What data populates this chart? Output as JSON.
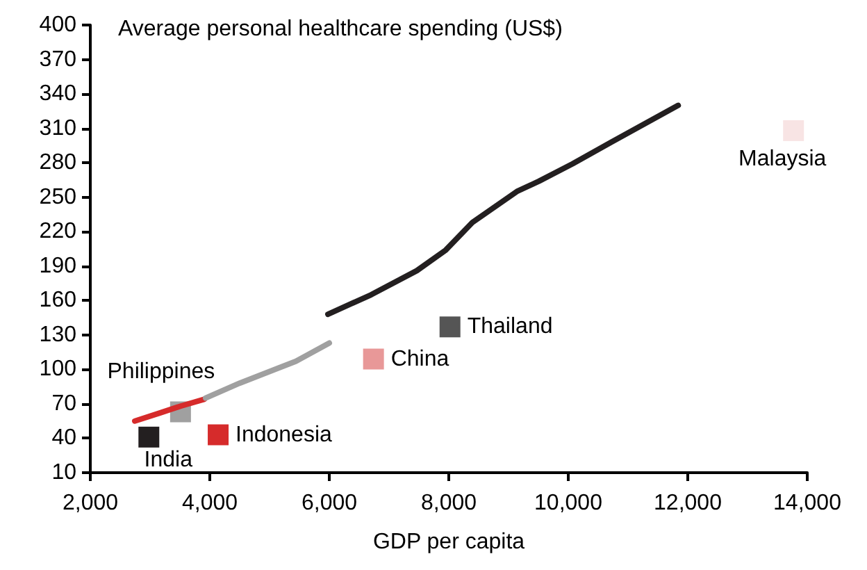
{
  "chart_data": {
    "type": "scatter",
    "title": "Average personal healthcare spending (US$)",
    "xlabel": "GDP per capita",
    "xlim": [
      2000,
      14000
    ],
    "xticks": [
      {
        "value": 2000,
        "label": "2,000"
      },
      {
        "value": 4000,
        "label": "4,000"
      },
      {
        "value": 6000,
        "label": "6,000"
      },
      {
        "value": 8000,
        "label": "8,000"
      },
      {
        "value": 10000,
        "label": "10,000"
      },
      {
        "value": 12000,
        "label": "12,000"
      },
      {
        "value": 14000,
        "label": "14,000"
      }
    ],
    "ylim": [
      10,
      400
    ],
    "yticks": [
      10,
      40,
      70,
      100,
      130,
      160,
      190,
      220,
      250,
      280,
      310,
      340,
      370,
      400
    ],
    "grid": false,
    "legend": false,
    "marker": "square",
    "series": [
      {
        "type": "line",
        "marker": "none",
        "color": "#d62b2b",
        "x": [
          2744,
          3163,
          3512,
          3907
        ],
        "values": [
          55,
          62,
          68,
          74
        ]
      },
      {
        "type": "line",
        "marker": "none",
        "color": "#a0a0a0",
        "x": [
          3930,
          4500,
          5140,
          5440,
          6000
        ],
        "values": [
          75,
          88,
          101,
          107,
          123
        ]
      },
      {
        "type": "line",
        "marker": "none",
        "color": "#231f20",
        "x": [
          5977,
          6700,
          7465,
          7950,
          8395,
          9140,
          9510,
          10070,
          10720,
          11840
        ],
        "values": [
          148,
          165,
          186,
          204,
          228,
          255,
          264,
          279,
          298,
          330
        ]
      },
      {
        "name": "India",
        "color": "#231f20",
        "x": [
          2980
        ],
        "values": [
          41
        ]
      },
      {
        "name": "Philippines",
        "color": "#a0a0a0",
        "x": [
          3510
        ],
        "values": [
          63
        ]
      },
      {
        "name": "Indonesia",
        "color": "#d62b2b",
        "x": [
          4140
        ],
        "values": [
          43
        ]
      },
      {
        "name": "China",
        "color": "#e89898",
        "x": [
          6740
        ],
        "values": [
          109
        ]
      },
      {
        "name": "Thailand",
        "color": "#555555",
        "x": [
          8020
        ],
        "values": [
          137
        ]
      },
      {
        "name": "Malaysia",
        "color": "#f8e4e4",
        "x": [
          13770
        ],
        "values": [
          308
        ]
      }
    ]
  }
}
